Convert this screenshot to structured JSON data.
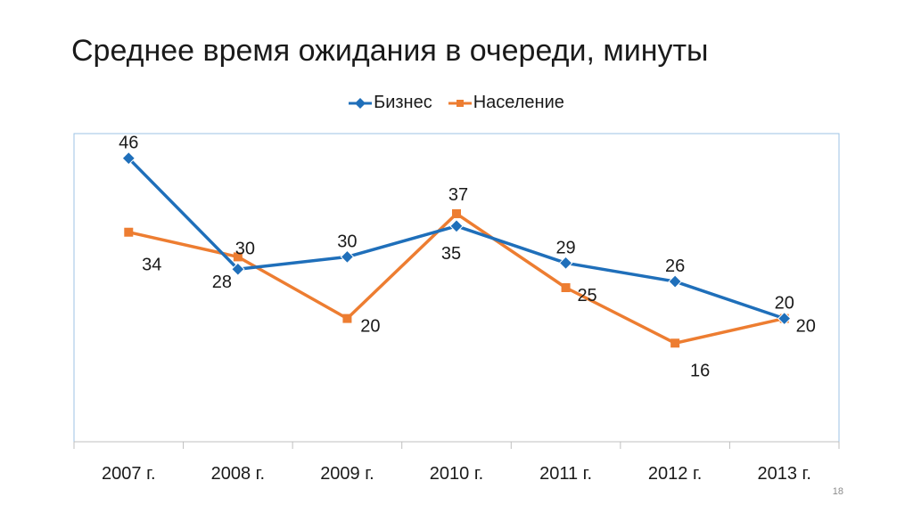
{
  "title": "Среднее время ожидания в очереди, минуты",
  "page_number": "18",
  "colors": {
    "business": "#1f6fba",
    "population": "#ed7d31",
    "frame": "#9dc3e6",
    "axis": "#bfbfbf"
  },
  "chart_data": {
    "type": "line",
    "title": "Среднее время ожидания в очереди, минуты",
    "categories": [
      "2007 г.",
      "2008 г.",
      "2009 г.",
      "2010 г.",
      "2011 г.",
      "2012 г.",
      "2013 г."
    ],
    "series": [
      {
        "name": "Бизнес",
        "marker": "diamond",
        "values": [
          46,
          28,
          30,
          35,
          29,
          26,
          20
        ],
        "labels": [
          "46",
          "28",
          "30",
          "35",
          "29",
          "26",
          "20"
        ]
      },
      {
        "name": "Население",
        "marker": "square",
        "values": [
          34,
          30,
          20,
          37,
          25,
          16,
          20
        ],
        "labels": [
          "34",
          "30",
          "20",
          "37",
          "25",
          "16",
          "20"
        ]
      }
    ],
    "ylim": [
      0,
      50
    ],
    "xlabel": "",
    "ylabel": "",
    "grid": false,
    "legend": "top-center"
  }
}
